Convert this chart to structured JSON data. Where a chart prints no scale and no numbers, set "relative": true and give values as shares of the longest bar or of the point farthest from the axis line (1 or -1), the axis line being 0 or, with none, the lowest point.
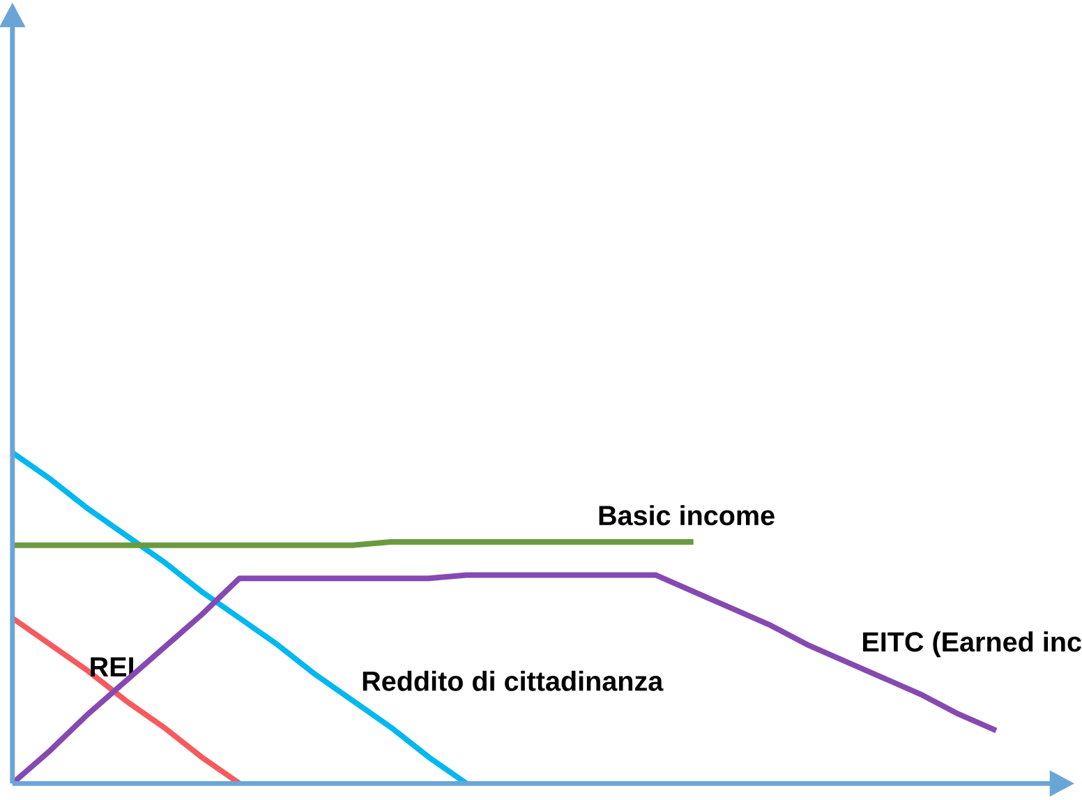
{
  "chart_data": {
    "type": "line",
    "relative": true,
    "legend": false,
    "categories": [
      null,
      null,
      null,
      null,
      null,
      null,
      null,
      null,
      null,
      null,
      null,
      null,
      null,
      null,
      null,
      null,
      null,
      null,
      null,
      null,
      null,
      null,
      null,
      null,
      null,
      null,
      null
    ],
    "series": [
      {
        "name": "Reddito di cittadinanza",
        "color": "#00b8f0",
        "values": [
          1,
          0.92,
          0.83,
          0.75,
          0.67,
          0.58,
          0.5,
          0.42,
          0.33,
          0.25,
          0.17,
          0.08,
          0,
          null,
          null,
          null,
          null,
          null,
          null,
          null,
          null,
          null,
          null,
          null,
          null,
          null,
          null
        ]
      },
      {
        "name": "Basic income",
        "color": "#6a9a40",
        "values": [
          0.72,
          0.72,
          0.72,
          0.72,
          0.72,
          0.72,
          0.72,
          0.72,
          0.72,
          0.72,
          0.73,
          0.73,
          0.73,
          0.73,
          0.73,
          0.73,
          0.73,
          0.73,
          0.73,
          null,
          null,
          null,
          null,
          null,
          null,
          null,
          null
        ]
      },
      {
        "name": "REI",
        "color": "#f65a5e",
        "values": [
          0.5,
          0.42,
          0.34,
          0.25,
          0.17,
          0.08,
          0,
          null,
          null,
          null,
          null,
          null,
          null,
          null,
          null,
          null,
          null,
          null,
          null,
          null,
          null,
          null,
          null,
          null,
          null,
          null,
          null
        ]
      },
      {
        "name": "EITC (Earned inc",
        "color": "#8649b0",
        "values": [
          0,
          0.1,
          0.21,
          0.31,
          0.41,
          0.51,
          0.62,
          0.62,
          0.62,
          0.62,
          0.62,
          0.62,
          0.63,
          0.63,
          0.63,
          0.63,
          0.63,
          0.63,
          0.58,
          0.53,
          0.48,
          0.42,
          0.37,
          0.32,
          0.27,
          0.21,
          0.16
        ]
      }
    ]
  }
}
